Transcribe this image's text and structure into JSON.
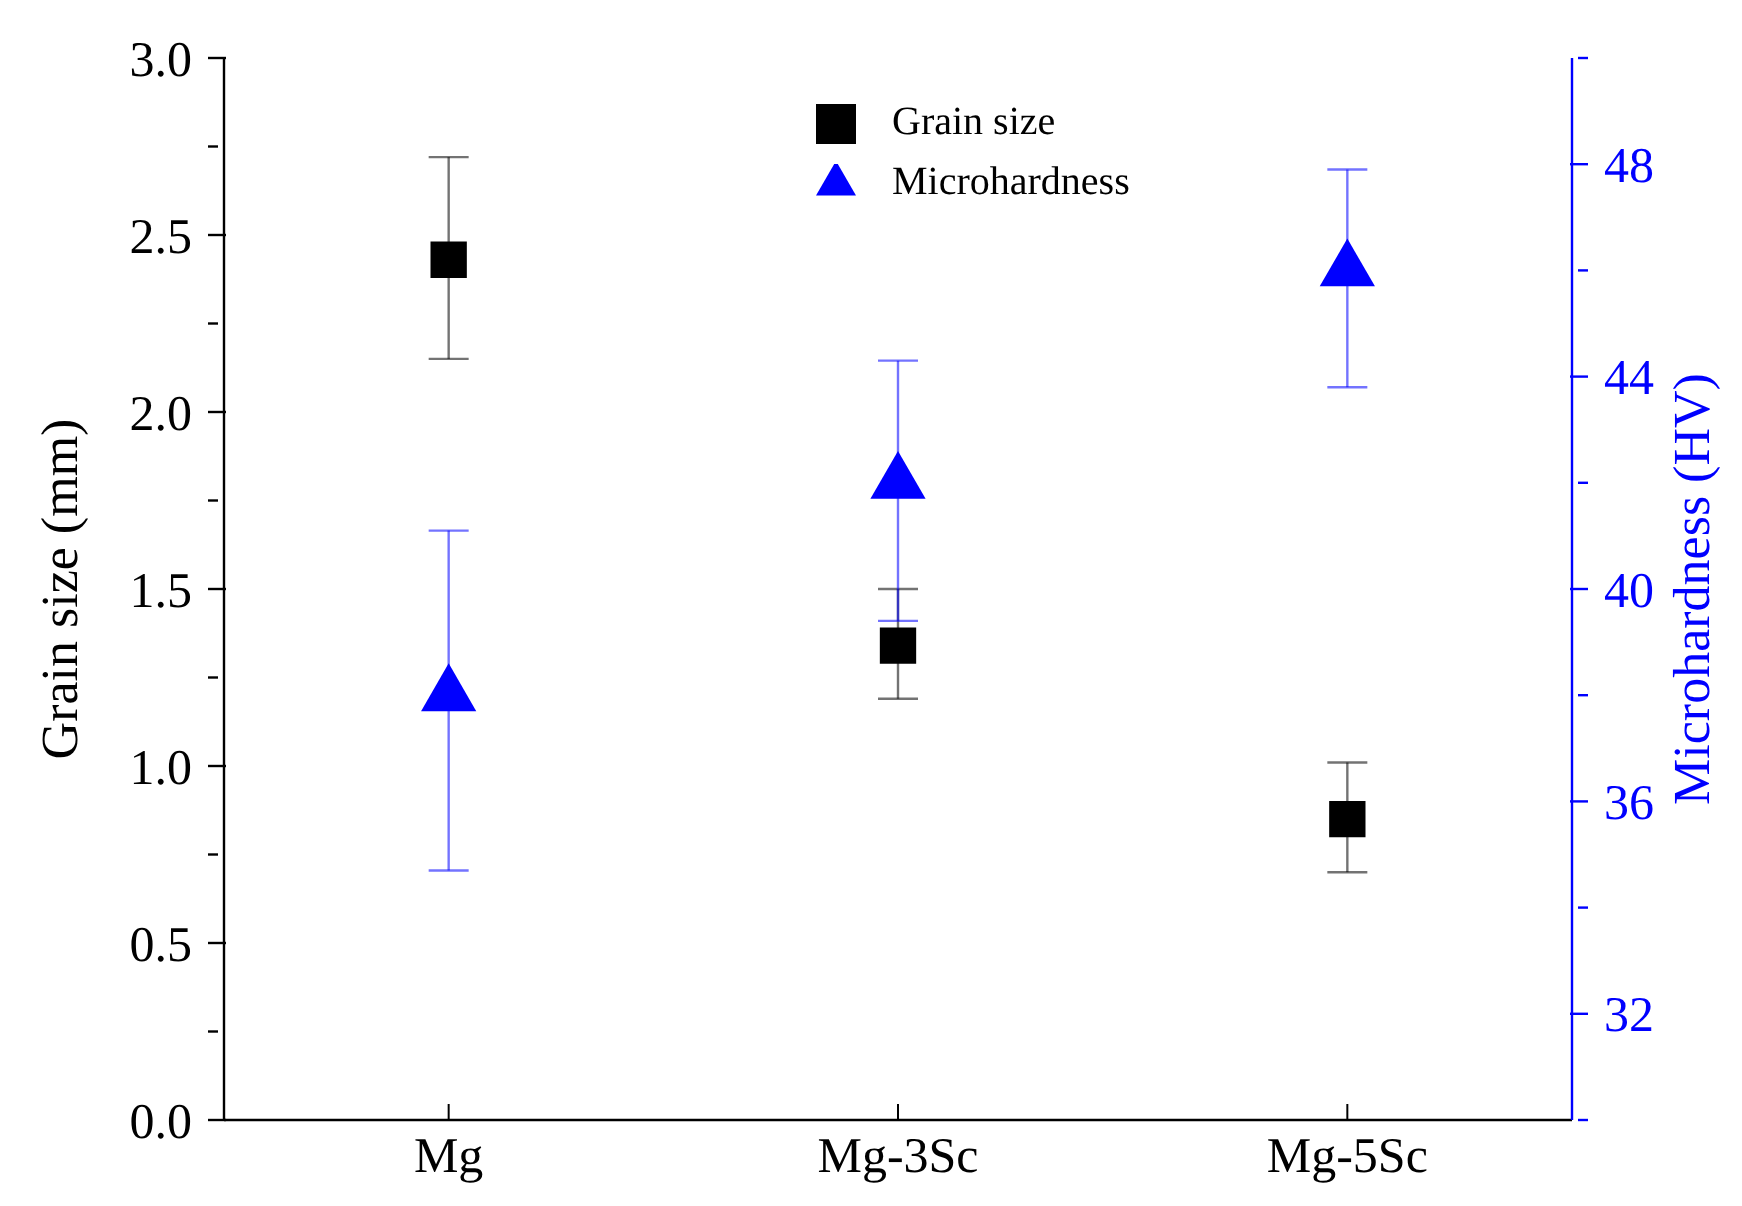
{
  "chart_data": {
    "type": "scatter",
    "ylabel": "Grain size (mm)",
    "y2label": "Microhardness (HV)",
    "categories": [
      "Mg",
      "Mg-3Sc",
      "Mg-5Sc"
    ],
    "series": [
      {
        "name": "Grain size",
        "color": "#000000",
        "marker": "square",
        "values": [
          2.43,
          1.34,
          0.85
        ],
        "errors": [
          [
            2.15,
            2.72
          ],
          [
            1.19,
            1.5
          ],
          [
            0.7,
            1.01
          ]
        ]
      },
      {
        "name": "Microhardness",
        "color": "#0000ff",
        "marker": "triangle",
        "axis": "y2",
        "values": [
          38,
          42,
          46
        ],
        "errors": [
          [
            34.7,
            41.1
          ],
          [
            39.4,
            44.3
          ],
          [
            43.8,
            47.9
          ]
        ]
      }
    ],
    "ylim": [
      0,
      3.0
    ],
    "yticks": [
      {
        "value": 0,
        "label": "0.0"
      },
      {
        "value": 0.25,
        "label": null
      },
      {
        "value": 0.5,
        "label": "0.5"
      },
      {
        "value": 0.75,
        "label": null
      },
      {
        "value": 1,
        "label": "1.0"
      },
      {
        "value": 1.25,
        "label": null
      },
      {
        "value": 1.5,
        "label": "1.5"
      },
      {
        "value": 1.75,
        "label": null
      },
      {
        "value": 2,
        "label": "2.0"
      },
      {
        "value": 2.25,
        "label": null
      },
      {
        "value": 2.5,
        "label": "2.5"
      },
      {
        "value": 2.75,
        "label": null
      },
      {
        "value": 3,
        "label": "3.0"
      }
    ],
    "y2lim": [
      30,
      50
    ],
    "y2ticks": [
      {
        "value": 30,
        "label": null
      },
      32,
      {
        "value": 34,
        "label": null
      },
      36,
      {
        "value": 38,
        "label": null
      },
      40,
      {
        "value": 42,
        "label": null
      },
      44,
      {
        "value": 46,
        "label": null
      },
      48,
      {
        "value": 50,
        "label": null
      }
    ],
    "legend": "top",
    "grid": false
  }
}
